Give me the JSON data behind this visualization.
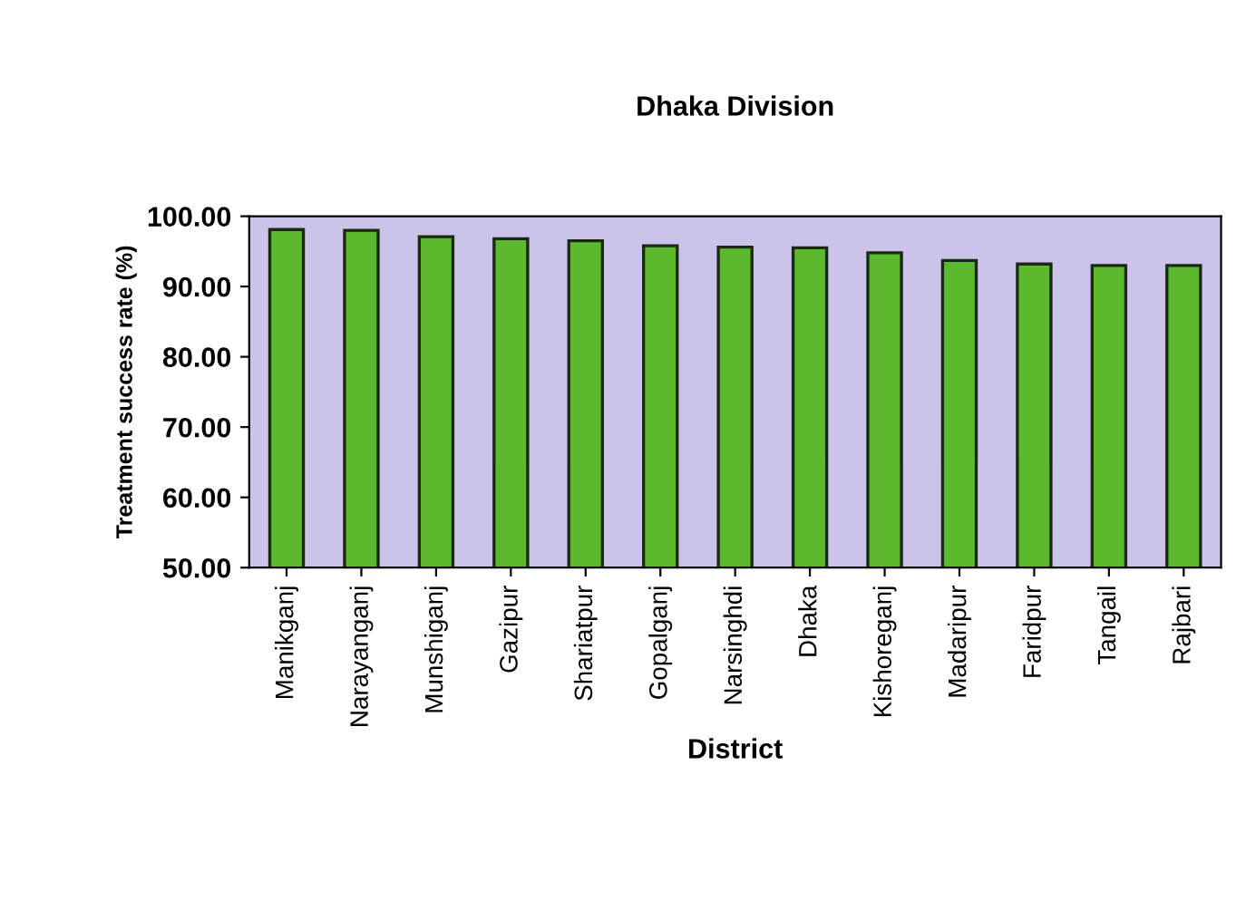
{
  "chart_data": {
    "type": "bar",
    "title": "Dhaka Division",
    "xlabel": "District",
    "ylabel": "Treatment success rate (%)",
    "categories": [
      "Manikganj",
      "Narayanganj",
      "Munshiganj",
      "Gazipur",
      "Shariatpur",
      "Gopalganj",
      "Narsinghdi",
      "Dhaka",
      "Kishoreganj",
      "Madaripur",
      "Faridpur",
      "Tangail",
      "Rajbari"
    ],
    "values": [
      98.1,
      98.0,
      97.1,
      96.8,
      96.5,
      95.8,
      95.6,
      95.5,
      94.8,
      93.7,
      93.2,
      93.0,
      93.0
    ],
    "color": "#5cb82e",
    "ylim": [
      50,
      100
    ],
    "yticks": [
      {
        "value": 50,
        "label": "50.00"
      },
      {
        "value": 60,
        "label": "60.00"
      },
      {
        "value": 70,
        "label": "70.00"
      },
      {
        "value": 80,
        "label": "80.00"
      },
      {
        "value": 90,
        "label": "90.00"
      },
      {
        "value": 100,
        "label": "100.00"
      }
    ],
    "grid": false
  }
}
